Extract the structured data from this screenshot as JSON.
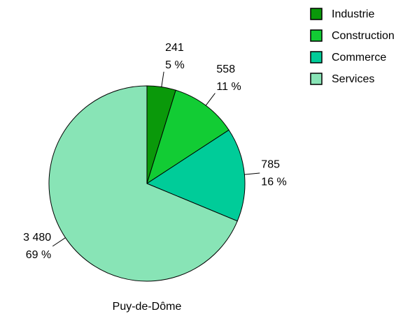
{
  "chart_data": {
    "type": "pie",
    "title": "Puy-de-Dôme",
    "categories": [
      "Industrie",
      "Construction",
      "Commerce",
      "Services"
    ],
    "values": [
      241,
      558,
      785,
      3480
    ],
    "value_labels": [
      "241",
      "558",
      "785",
      "3 480"
    ],
    "percent_labels": [
      "5 %",
      "11 %",
      "16 %",
      "69 %"
    ],
    "colors": [
      "#0a990a",
      "#12cc34",
      "#00cc99",
      "#88e4b6"
    ],
    "legend": "top-right"
  }
}
